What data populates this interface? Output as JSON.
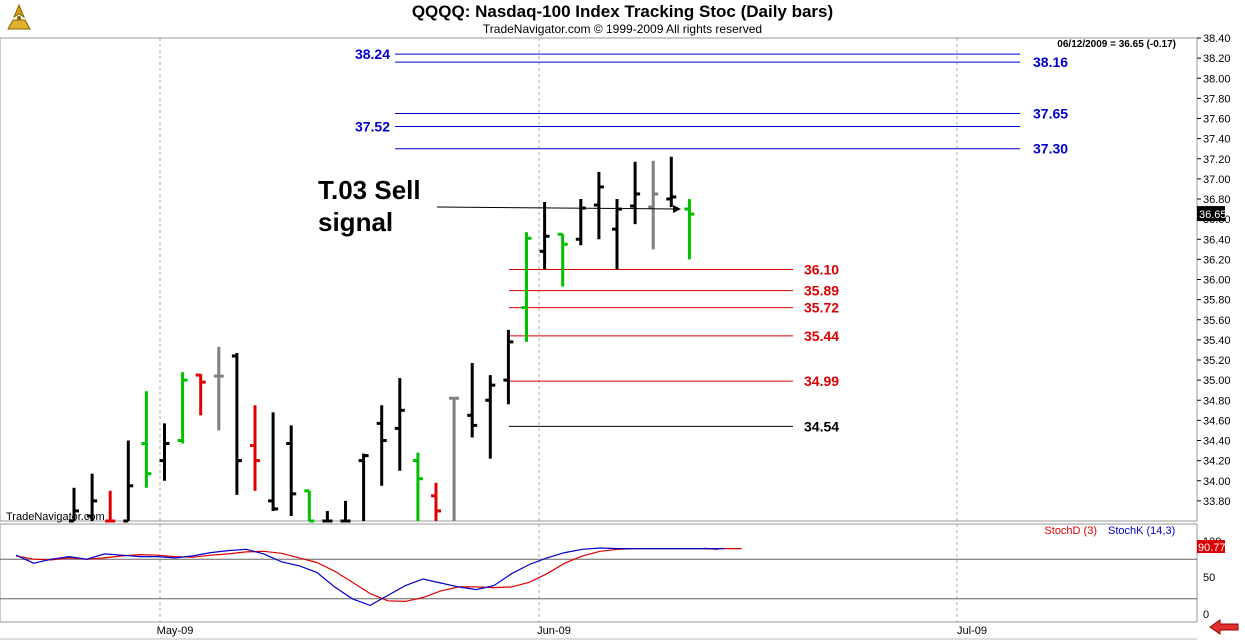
{
  "header": {
    "title": "QQQQ:  Nasdaq-100 Index Tracking Stoc  (Daily bars)",
    "subtitle": "TradeNavigator.com © 1999-2009 All rights reserved"
  },
  "price_readout": "06/12/2009 = 36.65 (-0.17)",
  "watermark": "TradeNavigator.com",
  "annotation": {
    "line1": "T.03 Sell",
    "line2": "signal"
  },
  "icons": [
    "compass-icon",
    "scroll-left-arrow-icon"
  ],
  "colors": {
    "up_bar": "#00c000",
    "down_bar": "#dd0000",
    "neutral_bar": "#808080",
    "blue_level": "#0000cc",
    "red_level": "#dd0000",
    "stoch_d": "#dd0000",
    "stoch_k": "#0000cc"
  },
  "chart_data": [
    {
      "type": "ohlc",
      "title": "QQQQ:  Nasdaq-100 Index Tracking Stoc  (Daily bars)",
      "y_axis": {
        "range": [
          33.6,
          38.4
        ],
        "ticks": [
          "33.80",
          "34.00",
          "34.20",
          "34.40",
          "34.60",
          "34.80",
          "35.00",
          "35.20",
          "35.40",
          "35.60",
          "35.80",
          "36.00",
          "36.20",
          "36.40",
          "36.60",
          "36.80",
          "37.00",
          "37.20",
          "37.40",
          "37.60",
          "37.80",
          "38.00",
          "38.20",
          "38.40"
        ]
      },
      "x_axis": {
        "labels": [
          "May-09",
          "Jun-09",
          "Jul-09"
        ]
      },
      "last_price": "36.65",
      "bars": [
        {
          "o": 33.6,
          "h": 33.93,
          "l": 33.6,
          "c": 33.7,
          "col": "k"
        },
        {
          "o": 33.65,
          "h": 34.07,
          "l": 33.6,
          "c": 33.8,
          "col": "k"
        },
        {
          "o": 33.6,
          "h": 33.9,
          "l": 33.6,
          "c": 33.6,
          "col": "r"
        },
        {
          "o": 33.6,
          "h": 34.4,
          "l": 33.6,
          "c": 33.95,
          "col": "k"
        },
        {
          "o": 34.37,
          "h": 34.89,
          "l": 33.93,
          "c": 34.07,
          "col": "g"
        },
        {
          "o": 34.2,
          "h": 34.57,
          "l": 34.0,
          "c": 34.37,
          "col": "k"
        },
        {
          "o": 34.4,
          "h": 35.08,
          "l": 34.37,
          "c": 35.0,
          "col": "g"
        },
        {
          "o": 35.05,
          "h": 35.06,
          "l": 34.65,
          "c": 34.98,
          "col": "r"
        },
        {
          "o": 35.04,
          "h": 35.33,
          "l": 34.5,
          "c": 35.04,
          "col": "gy"
        },
        {
          "o": 35.24,
          "h": 35.27,
          "l": 33.86,
          "c": 34.2,
          "col": "k"
        },
        {
          "o": 34.35,
          "h": 34.75,
          "l": 33.9,
          "c": 34.2,
          "col": "r"
        },
        {
          "o": 33.8,
          "h": 34.68,
          "l": 33.7,
          "c": 33.72,
          "col": "k"
        },
        {
          "o": 34.37,
          "h": 34.55,
          "l": 33.65,
          "c": 33.87,
          "col": "k"
        },
        {
          "o": 33.9,
          "h": 33.9,
          "l": 33.6,
          "c": 33.6,
          "col": "g"
        },
        {
          "o": 33.6,
          "h": 33.7,
          "l": 33.6,
          "c": 33.6,
          "col": "k"
        },
        {
          "o": 33.6,
          "h": 33.8,
          "l": 33.6,
          "c": 33.6,
          "col": "k"
        },
        {
          "o": 34.2,
          "h": 34.27,
          "l": 33.6,
          "c": 34.25,
          "col": "k"
        },
        {
          "o": 34.57,
          "h": 34.75,
          "l": 33.95,
          "c": 34.4,
          "col": "k"
        },
        {
          "o": 34.52,
          "h": 35.02,
          "l": 34.1,
          "c": 34.7,
          "col": "k"
        },
        {
          "o": 34.2,
          "h": 34.28,
          "l": 33.6,
          "c": 34.02,
          "col": "g"
        },
        {
          "o": 33.85,
          "h": 33.98,
          "l": 33.6,
          "c": 33.7,
          "col": "r"
        },
        {
          "o": 34.82,
          "h": 34.83,
          "l": 33.6,
          "c": 34.82,
          "col": "gy"
        },
        {
          "o": 34.65,
          "h": 35.17,
          "l": 34.43,
          "c": 34.55,
          "col": "k"
        },
        {
          "o": 34.8,
          "h": 35.05,
          "l": 34.22,
          "c": 34.95,
          "col": "k"
        },
        {
          "o": 35.0,
          "h": 35.5,
          "l": 34.76,
          "c": 35.38,
          "col": "k"
        },
        {
          "o": 35.72,
          "h": 36.47,
          "l": 35.38,
          "c": 36.41,
          "col": "g"
        },
        {
          "o": 36.28,
          "h": 36.77,
          "l": 36.1,
          "c": 36.43,
          "col": "k"
        },
        {
          "o": 36.45,
          "h": 36.45,
          "l": 35.93,
          "c": 36.35,
          "col": "g"
        },
        {
          "o": 36.4,
          "h": 36.8,
          "l": 36.34,
          "c": 36.71,
          "col": "k"
        },
        {
          "o": 36.74,
          "h": 37.07,
          "l": 36.4,
          "c": 36.92,
          "col": "k"
        },
        {
          "o": 36.5,
          "h": 36.8,
          "l": 36.1,
          "c": 36.7,
          "col": "k"
        },
        {
          "o": 36.73,
          "h": 37.17,
          "l": 36.55,
          "c": 36.85,
          "col": "k"
        },
        {
          "o": 36.72,
          "h": 37.18,
          "l": 36.3,
          "c": 36.85,
          "col": "gy"
        },
        {
          "o": 36.8,
          "h": 37.22,
          "l": 36.72,
          "c": 36.82,
          "col": "k"
        },
        {
          "o": 36.7,
          "h": 36.8,
          "l": 36.2,
          "c": 36.65,
          "col": "g"
        }
      ],
      "levels": [
        {
          "value": 38.24,
          "label": "38.24",
          "color": "blue",
          "label_side": "left"
        },
        {
          "value": 38.16,
          "label": "38.16",
          "color": "blue",
          "label_side": "right"
        },
        {
          "value": 37.65,
          "label": "37.65",
          "color": "blue",
          "label_side": "right"
        },
        {
          "value": 37.52,
          "label": "37.52",
          "color": "blue",
          "label_side": "left"
        },
        {
          "value": 37.3,
          "label": "37.30",
          "color": "blue",
          "label_side": "right"
        },
        {
          "value": 36.1,
          "label": "36.10",
          "color": "red",
          "label_side": "right"
        },
        {
          "value": 35.89,
          "label": "35.89",
          "color": "red",
          "label_side": "right"
        },
        {
          "value": 35.72,
          "label": "35.72",
          "color": "red",
          "label_side": "right"
        },
        {
          "value": 35.44,
          "label": "35.44",
          "color": "red",
          "label_side": "right"
        },
        {
          "value": 34.99,
          "label": "34.99",
          "color": "red",
          "label_side": "right"
        },
        {
          "value": 34.54,
          "label": "34.54",
          "color": "black",
          "label_side": "right"
        }
      ]
    },
    {
      "type": "line",
      "legend": [
        "StochD (3)",
        "StochK (14,3)"
      ],
      "y_axis": {
        "range": [
          0,
          100
        ],
        "ticks": [
          "0",
          "50",
          "100"
        ]
      },
      "last_value": "90.77",
      "series": [
        {
          "name": "StochD (3)",
          "values": [
            85,
            80,
            79,
            82,
            80,
            82,
            85,
            87,
            86,
            84,
            83,
            86,
            88,
            91,
            92,
            89,
            82,
            75,
            62,
            45,
            28,
            17,
            16,
            22,
            32,
            38,
            38,
            37,
            38,
            45,
            58,
            74,
            85,
            92,
            95,
            96,
            96,
            96,
            96,
            96,
            96,
            96,
            null,
            null,
            null,
            null
          ]
        },
        {
          "name": "StochK (14,3)",
          "values": [
            86,
            74,
            80,
            84,
            80,
            88,
            86,
            84,
            84,
            82,
            85,
            90,
            93,
            95,
            88,
            76,
            70,
            60,
            38,
            20,
            10,
            25,
            40,
            50,
            44,
            38,
            34,
            40,
            58,
            72,
            82,
            90,
            95,
            97,
            96,
            96,
            96,
            96,
            96,
            96,
            96,
            null,
            null,
            null,
            null,
            null
          ]
        }
      ]
    }
  ]
}
